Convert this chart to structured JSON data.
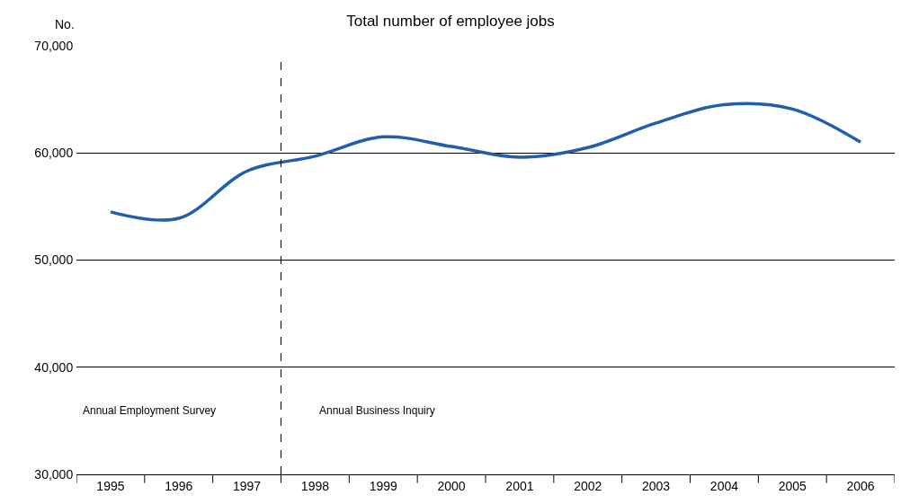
{
  "chart_data": {
    "type": "line",
    "title": "Total number of employee jobs",
    "ylabel": "No.",
    "x": [
      1995,
      1996,
      1997,
      1998,
      1999,
      2000,
      2001,
      2002,
      2003,
      2004,
      2005,
      2006
    ],
    "series": [
      {
        "color": "#1f5fae",
        "values": [
          54500,
          53900,
          58300,
          59700,
          61500,
          60600,
          59600,
          60500,
          62800,
          64500,
          64100,
          61000
        ]
      }
    ],
    "xlim": [
      1994.5,
      2006.5
    ],
    "xticks": [
      {
        "value": 1994.5,
        "label": null
      },
      {
        "value": 1995,
        "label": "1995"
      },
      {
        "value": 1995.5,
        "label": null
      },
      {
        "value": 1996,
        "label": "1996"
      },
      {
        "value": 1996.5,
        "label": null
      },
      {
        "value": 1997,
        "label": "1997"
      },
      {
        "value": 1997.5,
        "label": null
      },
      {
        "value": 1998,
        "label": "1998"
      },
      {
        "value": 1998.5,
        "label": null
      },
      {
        "value": 1999,
        "label": "1999"
      },
      {
        "value": 1999.5,
        "label": null
      },
      {
        "value": 2000,
        "label": "2000"
      },
      {
        "value": 2000.5,
        "label": null
      },
      {
        "value": 2001,
        "label": "2001"
      },
      {
        "value": 2001.5,
        "label": null
      },
      {
        "value": 2002,
        "label": "2002"
      },
      {
        "value": 2002.5,
        "label": null
      },
      {
        "value": 2003,
        "label": "2003"
      },
      {
        "value": 2003.5,
        "label": null
      },
      {
        "value": 2004,
        "label": "2004"
      },
      {
        "value": 2004.5,
        "label": null
      },
      {
        "value": 2005,
        "label": "2005"
      },
      {
        "value": 2005.5,
        "label": null
      },
      {
        "value": 2006,
        "label": "2006"
      },
      {
        "value": 2006.5,
        "label": null
      }
    ],
    "ylim": [
      30000,
      70000
    ],
    "yticks": [
      {
        "value": 30000,
        "label": "30,000"
      },
      {
        "value": 40000,
        "label": "40,000"
      },
      {
        "value": 50000,
        "label": "50,000"
      },
      {
        "value": 60000,
        "label": "60,000"
      },
      {
        "value": 70000,
        "label": "70,000"
      }
    ],
    "grid": "y",
    "marker": "none",
    "line_style": "solid",
    "ref_lines": [
      {
        "axis": "x",
        "value": 1997.5,
        "line_style": "dashed",
        "color": "#000000"
      }
    ],
    "annotations": [
      "Annual Employment Survey",
      "Annual Business Inquiry"
    ]
  }
}
